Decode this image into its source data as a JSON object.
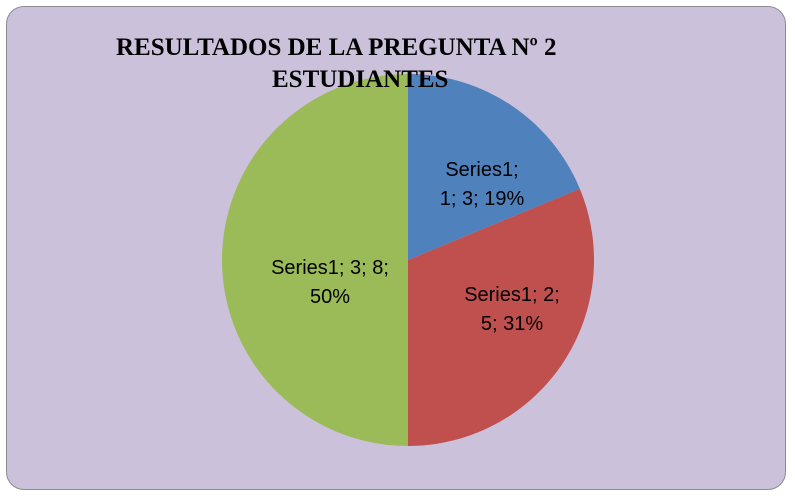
{
  "chart_data": {
    "type": "pie",
    "title": [
      "RESULTADOS DE LA PREGUNTA Nº 2",
      "ESTUDIANTES"
    ],
    "values": [
      3,
      5,
      8
    ],
    "value_labels": [
      "Series1; 1; 3; 19%",
      "Series1; 2; 5; 31%",
      "Series1; 3; 8; 50%"
    ],
    "colors": [
      "#4f81bd",
      "#c0504d",
      "#9bbb59"
    ]
  }
}
